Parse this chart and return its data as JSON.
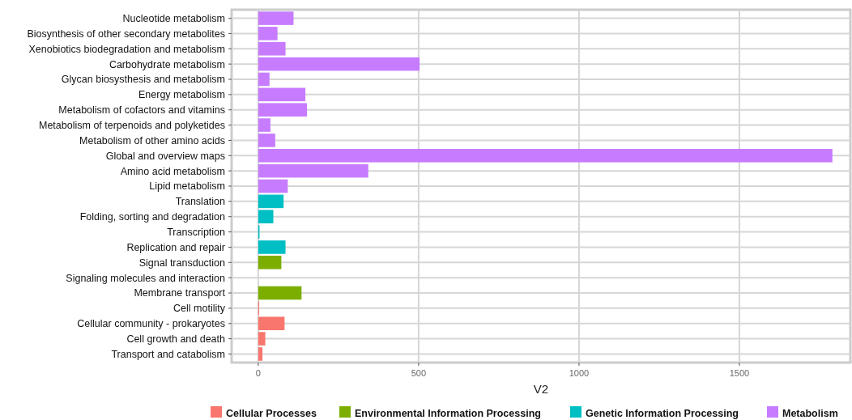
{
  "chart_data": {
    "type": "bar",
    "orientation": "horizontal",
    "xlabel": "V2",
    "categories": [
      "Nucleotide metabolism",
      "Biosynthesis of other secondary metabolites",
      "Xenobiotics biodegradation and metabolism",
      "Carbohydrate metabolism",
      "Glycan biosysthesis and metabolism",
      "Energy metabolism",
      "Metabolism of cofactors and vitamins",
      "Metabolism of terpenoids and polyketides",
      "Metabolism of other amino acids",
      "Global and overview maps",
      "Amino acid metabolism",
      "Lipid metabolism",
      "Translation",
      "Folding, sorting and degradation",
      "Transcription",
      "Replication and repair",
      "Signal transduction",
      "Signaling molecules and interaction",
      "Membrane transport",
      "Cell motility",
      "Cellular community - prokaryotes",
      "Cell growth and death",
      "Transport and catabolism"
    ],
    "series": [
      {
        "name": "Cellular Processes",
        "color": "#f8766d",
        "values": [
          null,
          null,
          null,
          null,
          null,
          null,
          null,
          null,
          null,
          null,
          null,
          null,
          null,
          null,
          null,
          null,
          null,
          null,
          null,
          3,
          82,
          22,
          13
        ]
      },
      {
        "name": "Environmental Information Processing",
        "color": "#7cae00",
        "values": [
          null,
          null,
          null,
          null,
          null,
          null,
          null,
          null,
          null,
          null,
          null,
          null,
          null,
          null,
          null,
          null,
          72,
          0,
          135,
          null,
          null,
          null,
          null
        ]
      },
      {
        "name": "Genetic Information Processing",
        "color": "#00bfc4",
        "values": [
          null,
          null,
          null,
          null,
          null,
          null,
          null,
          null,
          null,
          null,
          null,
          null,
          79,
          47,
          4,
          85,
          null,
          null,
          null,
          null,
          null,
          null,
          null
        ]
      },
      {
        "name": "Metabolism",
        "color": "#c77cff",
        "values": [
          110,
          60,
          85,
          503,
          35,
          147,
          152,
          38,
          53,
          1790,
          343,
          92,
          null,
          null,
          null,
          null,
          null,
          null,
          null,
          null,
          null,
          null,
          null
        ]
      }
    ],
    "xlim": [
      -83,
      1846
    ],
    "xticks": [
      0,
      500,
      1000,
      1500
    ],
    "grid": true,
    "legend": "bottom"
  }
}
